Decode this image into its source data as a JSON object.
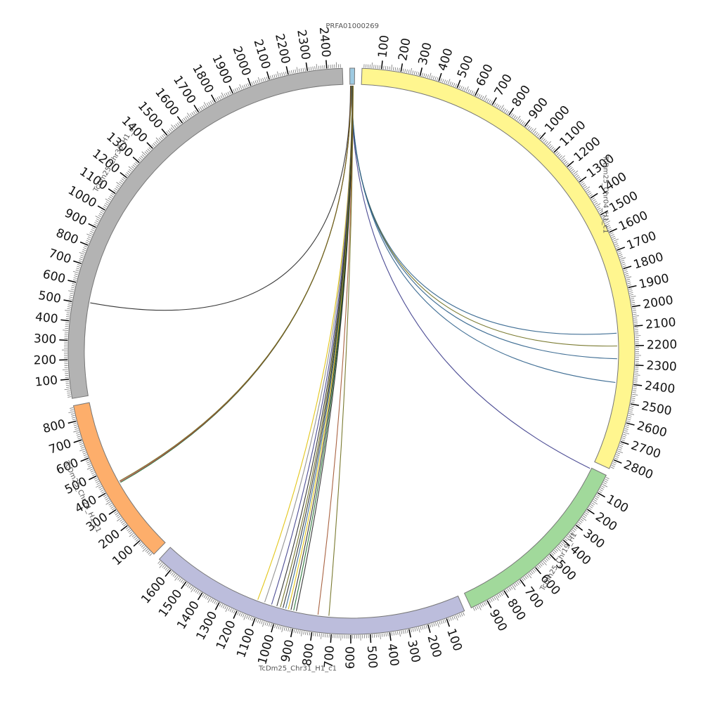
{
  "chart_data": {
    "type": "chord",
    "title": "",
    "segments": [
      {
        "name": "PRFA01000269",
        "length": 25,
        "color": "#9ecae1",
        "label_step": 0
      },
      {
        "name": "TcDm25_Chr04_H1_c1",
        "length": 2850,
        "color": "#fff68f",
        "label_step": 100
      },
      {
        "name": "TcDm25_Chr19_H1",
        "length": 990,
        "color": "#a1d99b",
        "label_step": 100
      },
      {
        "name": "TcDm25_Chr31_H1_c1",
        "length": 1680,
        "color": "#bcbddc",
        "label_step": 100
      },
      {
        "name": "TcDm25_Chr24_H1_c1",
        "length": 880,
        "color": "#fdae6b",
        "label_step": 100
      },
      {
        "name": "TcDm25_Chr30_H1_c1",
        "length": 2480,
        "color": "#b3b3b3",
        "label_step": 100
      }
    ],
    "links": [
      {
        "source": "PRFA01000269",
        "s_pos": 3,
        "target": "TcDm25_Chr30_H1_c1",
        "t_pos": 510,
        "color": "#222222"
      },
      {
        "source": "PRFA01000269",
        "s_pos": 8,
        "target": "TcDm25_Chr04_H1_c1",
        "t_pos": 2130,
        "color": "#2c5f8a"
      },
      {
        "source": "PRFA01000269",
        "s_pos": 9,
        "target": "TcDm25_Chr04_H1_c1",
        "t_pos": 2200,
        "color": "#6b6b1a"
      },
      {
        "source": "PRFA01000269",
        "s_pos": 10,
        "target": "TcDm25_Chr04_H1_c1",
        "t_pos": 2270,
        "color": "#2c5f8a"
      },
      {
        "source": "PRFA01000269",
        "s_pos": 11,
        "target": "TcDm25_Chr04_H1_c1",
        "t_pos": 2400,
        "color": "#2c5f8a"
      },
      {
        "source": "PRFA01000269",
        "s_pos": 7,
        "target": "TcDm25_Chr19_H1",
        "t_pos": 5,
        "color": "#3a3a8a"
      },
      {
        "source": "PRFA01000269",
        "s_pos": 5,
        "target": "TcDm25_Chr24_H1_c1",
        "t_pos": 410,
        "color": "#1a6a2a"
      },
      {
        "source": "PRFA01000269",
        "s_pos": 5,
        "target": "TcDm25_Chr24_H1_c1",
        "t_pos": 415,
        "color": "#b03030"
      },
      {
        "source": "PRFA01000269",
        "s_pos": 6,
        "target": "TcDm25_Chr24_H1_c1",
        "t_pos": 420,
        "color": "#6b6b1a"
      },
      {
        "source": "PRFA01000269",
        "s_pos": 13,
        "target": "TcDm25_Chr31_H1_c1",
        "t_pos": 1120,
        "color": "#e0c000"
      },
      {
        "source": "PRFA01000269",
        "s_pos": 13,
        "target": "TcDm25_Chr31_H1_c1",
        "t_pos": 1080,
        "color": "#888888"
      },
      {
        "source": "PRFA01000269",
        "s_pos": 14,
        "target": "TcDm25_Chr31_H1_c1",
        "t_pos": 1040,
        "color": "#3a3a8a"
      },
      {
        "source": "PRFA01000269",
        "s_pos": 14,
        "target": "TcDm25_Chr31_H1_c1",
        "t_pos": 1010,
        "color": "#222222"
      },
      {
        "source": "PRFA01000269",
        "s_pos": 14,
        "target": "TcDm25_Chr31_H1_c1",
        "t_pos": 990,
        "color": "#6b6b1a"
      },
      {
        "source": "PRFA01000269",
        "s_pos": 15,
        "target": "TcDm25_Chr31_H1_c1",
        "t_pos": 975,
        "color": "#222222"
      },
      {
        "source": "PRFA01000269",
        "s_pos": 15,
        "target": "TcDm25_Chr31_H1_c1",
        "t_pos": 960,
        "color": "#2c5f8a"
      },
      {
        "source": "PRFA01000269",
        "s_pos": 15,
        "target": "TcDm25_Chr31_H1_c1",
        "t_pos": 945,
        "color": "#e0c000"
      },
      {
        "source": "PRFA01000269",
        "s_pos": 16,
        "target": "TcDm25_Chr31_H1_c1",
        "t_pos": 930,
        "color": "#222222"
      },
      {
        "source": "PRFA01000269",
        "s_pos": 16,
        "target": "TcDm25_Chr31_H1_c1",
        "t_pos": 915,
        "color": "#1a6a2a"
      },
      {
        "source": "PRFA01000269",
        "s_pos": 16,
        "target": "TcDm25_Chr31_H1_c1",
        "t_pos": 900,
        "color": "#222222"
      },
      {
        "source": "PRFA01000269",
        "s_pos": 17,
        "target": "TcDm25_Chr31_H1_c1",
        "t_pos": 780,
        "color": "#a0522d"
      },
      {
        "source": "PRFA01000269",
        "s_pos": 18,
        "target": "TcDm25_Chr31_H1_c1",
        "t_pos": 720,
        "color": "#6b6b1a"
      }
    ]
  }
}
